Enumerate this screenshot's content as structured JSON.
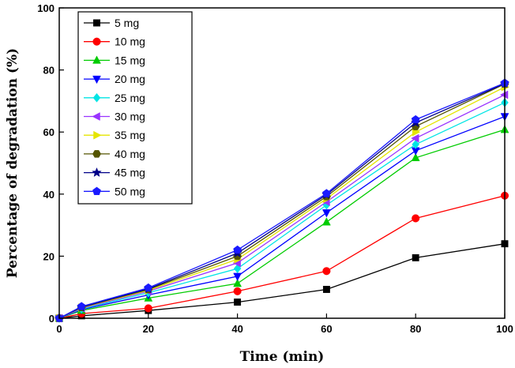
{
  "chart_data": {
    "type": "line",
    "title": "",
    "xlabel": "Time (min)",
    "ylabel": "Percentage of degradation (%)",
    "xlim": [
      0,
      100
    ],
    "ylim": [
      0,
      100
    ],
    "xticks": [
      0,
      20,
      40,
      60,
      80,
      100
    ],
    "yticks": [
      0,
      20,
      40,
      60,
      80,
      100
    ],
    "x": [
      0,
      5,
      20,
      40,
      60,
      80,
      100
    ],
    "legend_position": "top-left",
    "series": [
      {
        "name": "5 mg",
        "color": "#000000",
        "marker": "square",
        "values": [
          0,
          0.8,
          2.5,
          5.2,
          9.3,
          19.5,
          24
        ]
      },
      {
        "name": "10 mg",
        "color": "#ff0000",
        "marker": "circle",
        "values": [
          0,
          1.5,
          3.2,
          8.7,
          15.2,
          32.2,
          39.5
        ]
      },
      {
        "name": "15 mg",
        "color": "#00cc00",
        "marker": "triangle-up",
        "values": [
          0,
          2.5,
          6.5,
          11.2,
          31,
          51.7,
          60.8
        ]
      },
      {
        "name": "20 mg",
        "color": "#0000ff",
        "marker": "triangle-down",
        "values": [
          0,
          2.8,
          7.5,
          13.5,
          34,
          54,
          65
        ]
      },
      {
        "name": "25 mg",
        "color": "#00e5e5",
        "marker": "diamond",
        "values": [
          0,
          3,
          8.2,
          16,
          36.5,
          56,
          69.5
        ]
      },
      {
        "name": "30 mg",
        "color": "#9933ff",
        "marker": "triangle-left",
        "values": [
          0,
          3.2,
          8.7,
          17.8,
          37.5,
          58,
          72
        ]
      },
      {
        "name": "35 mg",
        "color": "#e5e500",
        "marker": "triangle-right",
        "values": [
          0,
          3.4,
          9,
          19,
          38.5,
          60,
          74.5
        ]
      },
      {
        "name": "40 mg",
        "color": "#555500",
        "marker": "hexagon",
        "values": [
          0,
          3.5,
          9.3,
          20,
          39.2,
          61.8,
          75.5
        ]
      },
      {
        "name": "45 mg",
        "color": "#000088",
        "marker": "star",
        "values": [
          0,
          3.6,
          9.5,
          21,
          39.8,
          63,
          75.6
        ]
      },
      {
        "name": "50 mg",
        "color": "#1a1aff",
        "marker": "pentagon",
        "values": [
          0,
          3.8,
          9.8,
          22,
          40.2,
          64,
          75.8
        ]
      }
    ]
  }
}
